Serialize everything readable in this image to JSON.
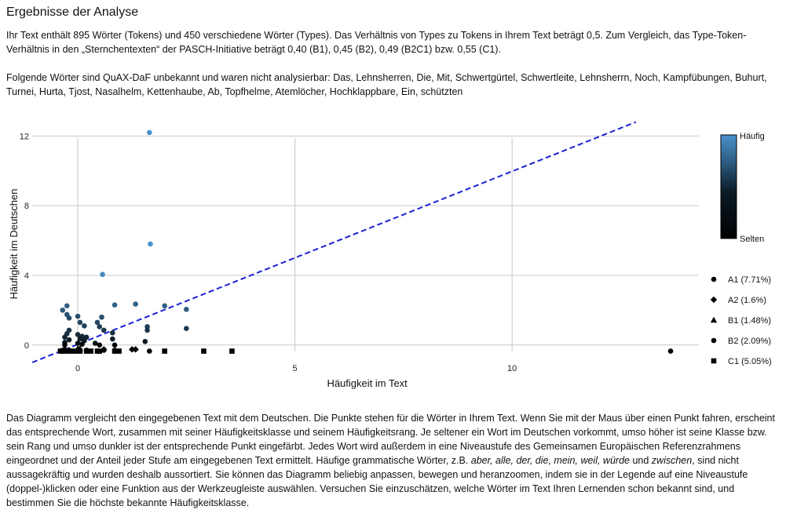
{
  "heading": "Ergebnisse der Analyse",
  "intro": "Ihr Text enthält 895 Wörter (Tokens) und 450 verschiedene Wörter (Types). Das Verhältnis von Types zu Tokens in Ihrem Text beträgt 0,5. Zum Vergleich, das Type-Token-Verhältnis in den „Sternchentexten“ der PASCH-Initiative beträgt 0,40 (B1), 0,45 (B2), 0,49 (B2C1) bzw. 0,55 (C1).",
  "unknown_words": "Folgende Wörter sind QuAX-DaF unbekannt und waren nicht analysierbar: Das, Lehnsherren, Die, Mit, Schwertgürtel, Schwertleite, Lehnsherrn, Noch, Kampfübungen, Buhurt, Turnei, Hurta, Tjost, Nasalhelm, Kettenhaube, Ab, Topfhelme, Atemlöcher, Hochklappbare, Ein, schützten",
  "explanation": {
    "part1": "Das Diagramm vergleicht den eingegebenen Text mit dem Deutschen. Die Punkte stehen für die Wörter in Ihrem Text. Wenn Sie mit der Maus über einen Punkt fahren, erscheint das entsprechende Wort, zusammen mit seiner Häufigkeitsklasse und seinem Häufigkeitsrang. Je seltener ein Wort im Deutschen vorkommt, umso höher ist seine Klasse bzw. sein Rang und umso dunkler ist der entsprechende Punkt eingefärbt. Jedes Wort wird außerdem in eine Niveaustufe des Gemeinsamen Europäischen Referenzrahmens eingeordnet und der Anteil jeder Stufe am eingegebenen Text ermittelt. Häufige grammatische Wörter, z.B. ",
    "examples": "aber, alle, der, die, mein, weil, würde",
    "and": " und ",
    "example_last": "zwischen",
    "part2": ", sind nicht aussagekräftig und wurden deshalb aussortiert. Sie können das Diagramm beliebig anpassen, bewegen und heranzoomen, indem sie in der Legende auf eine Niveaustufe (doppel-)klicken oder eine Funktion aus der Werkzeugleiste auswählen. Versuchen Sie einzuschätzen, welche Wörter im Text Ihren Lernenden schon bekannt sind, und bestimmen Sie die höchste bekannte Häufigkeitsklasse."
  },
  "chart_data": {
    "type": "scatter",
    "xlabel": "Häufigkeit im Text",
    "ylabel": "Häufigkeit im Deutschen",
    "xlim": [
      -1.05,
      14.3
    ],
    "ylim": [
      -1.0,
      12.6
    ],
    "xticks": [
      0,
      5,
      10
    ],
    "yticks": [
      0,
      4,
      8,
      12
    ],
    "grid": true,
    "trend_line": {
      "x": [
        -1.05,
        12.85
      ],
      "y": [
        -1.0,
        12.8
      ],
      "style": "dashed",
      "color": "#1a22d8"
    },
    "colorbar": {
      "top_label": "Häufig",
      "bottom_label": "Selten",
      "colors": [
        "#4a92cc",
        "#000000"
      ]
    },
    "legend_position": "right",
    "series": [
      {
        "name": "A1 (7.71%)",
        "marker": "circle",
        "points": [
          [
            1.65,
            12.2
          ],
          [
            1.67,
            5.8
          ],
          [
            0.57,
            4.05
          ],
          [
            1.33,
            2.35
          ],
          [
            0.85,
            2.3
          ],
          [
            2.0,
            2.25
          ],
          [
            2.5,
            2.05
          ],
          [
            -0.25,
            2.25
          ],
          [
            -0.35,
            2.0
          ],
          [
            -0.25,
            1.75
          ],
          [
            -0.2,
            1.55
          ],
          [
            0.0,
            1.65
          ],
          [
            0.05,
            1.3
          ],
          [
            0.15,
            1.1
          ],
          [
            0.55,
            1.6
          ],
          [
            0.45,
            1.3
          ],
          [
            0.5,
            1.05
          ],
          [
            0.6,
            0.85
          ],
          [
            0.8,
            0.7
          ],
          [
            0.8,
            0.35
          ],
          [
            1.6,
            1.05
          ],
          [
            1.6,
            0.85
          ],
          [
            2.5,
            0.95
          ],
          [
            -0.2,
            0.85
          ],
          [
            -0.25,
            0.65
          ],
          [
            -0.3,
            0.45
          ],
          [
            -0.2,
            0.3
          ],
          [
            -0.3,
            0.15
          ],
          [
            0.0,
            0.6
          ],
          [
            0.1,
            0.5
          ],
          [
            0.2,
            0.45
          ],
          [
            0.05,
            0.35
          ],
          [
            0.15,
            0.25
          ],
          [
            0.0,
            0.1
          ],
          [
            0.1,
            0.05
          ],
          [
            0.4,
            0.1
          ],
          [
            0.5,
            0.0
          ],
          [
            1.55,
            0.2
          ],
          [
            0.85,
            0.0
          ],
          [
            -0.3,
            0.0
          ]
        ]
      },
      {
        "name": "A2 (1.6%)",
        "marker": "diamond",
        "points": [
          [
            1.25,
            -0.25
          ],
          [
            1.33,
            -0.25
          ],
          [
            0.6,
            -0.25
          ]
        ]
      },
      {
        "name": "B1 (1.48%)",
        "marker": "triangle",
        "points": [
          [
            -0.3,
            -0.2
          ],
          [
            0.0,
            -0.2
          ],
          [
            0.05,
            -0.2
          ]
        ]
      },
      {
        "name": "B2 (2.09%)",
        "marker": "circle",
        "points": [
          [
            13.65,
            -0.35
          ],
          [
            1.65,
            -0.35
          ],
          [
            0.85,
            -0.3
          ],
          [
            0.6,
            -0.3
          ],
          [
            0.2,
            -0.3
          ],
          [
            -0.2,
            -0.3
          ],
          [
            -0.35,
            -0.3
          ]
        ]
      },
      {
        "name": "C1 (5.05%)",
        "marker": "square",
        "points": [
          [
            3.55,
            -0.35
          ],
          [
            2.9,
            -0.35
          ],
          [
            2.0,
            -0.35
          ],
          [
            0.95,
            -0.35
          ],
          [
            0.85,
            -0.35
          ],
          [
            0.5,
            -0.35
          ],
          [
            0.45,
            -0.35
          ],
          [
            0.3,
            -0.35
          ],
          [
            0.2,
            -0.35
          ],
          [
            0.05,
            -0.35
          ],
          [
            -0.05,
            -0.35
          ],
          [
            -0.15,
            -0.35
          ],
          [
            -0.25,
            -0.35
          ],
          [
            -0.35,
            -0.35
          ],
          [
            -0.4,
            -0.35
          ]
        ]
      }
    ]
  }
}
